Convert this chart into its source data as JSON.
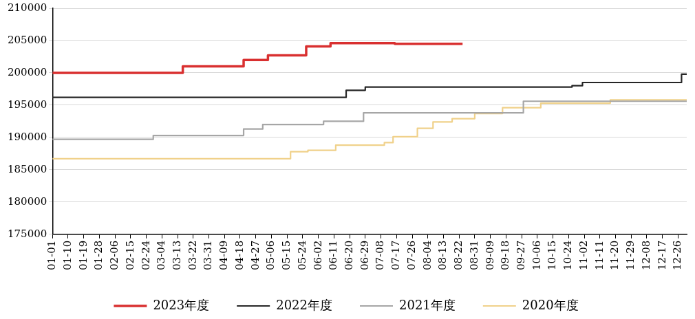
{
  "chart_data": {
    "type": "step",
    "legend": "bottom",
    "grid": "y",
    "marker": "none",
    "xlim": [
      "2020-01-01",
      "2020-12-31"
    ],
    "ylim": [
      175000,
      210000
    ],
    "yticks": [
      175000,
      180000,
      185000,
      190000,
      195000,
      200000,
      205000,
      210000
    ],
    "xticks": [
      {
        "value": "2020-01-01",
        "label": "01-01"
      },
      {
        "value": "2020-01-10",
        "label": "01-10"
      },
      {
        "value": "2020-01-19",
        "label": "01-19"
      },
      {
        "value": "2020-01-28",
        "label": "01-28"
      },
      {
        "value": "2020-02-06",
        "label": "02-06"
      },
      {
        "value": "2020-02-15",
        "label": "02-15"
      },
      {
        "value": "2020-02-24",
        "label": "02-24"
      },
      {
        "value": "2020-03-04",
        "label": "03-04"
      },
      {
        "value": "2020-03-13",
        "label": "03-13"
      },
      {
        "value": "2020-03-22",
        "label": "03-22"
      },
      {
        "value": "2020-03-31",
        "label": "03-31"
      },
      {
        "value": "2020-04-09",
        "label": "04-09"
      },
      {
        "value": "2020-04-18",
        "label": "04-18"
      },
      {
        "value": "2020-04-27",
        "label": "04-27"
      },
      {
        "value": "2020-05-06",
        "label": "05-06"
      },
      {
        "value": "2020-05-15",
        "label": "05-15"
      },
      {
        "value": "2020-05-24",
        "label": "05-24"
      },
      {
        "value": "2020-06-02",
        "label": "06-02"
      },
      {
        "value": "2020-06-11",
        "label": "06-11"
      },
      {
        "value": "2020-06-20",
        "label": "06-20"
      },
      {
        "value": "2020-06-29",
        "label": "06-29"
      },
      {
        "value": "2020-07-08",
        "label": "07-08"
      },
      {
        "value": "2020-07-17",
        "label": "07-17"
      },
      {
        "value": "2020-07-26",
        "label": "07-26"
      },
      {
        "value": "2020-08-04",
        "label": "08-04"
      },
      {
        "value": "2020-08-13",
        "label": "08-13"
      },
      {
        "value": "2020-08-22",
        "label": "08-22"
      },
      {
        "value": "2020-08-31",
        "label": "08-31"
      },
      {
        "value": "2020-09-09",
        "label": "09-09"
      },
      {
        "value": "2020-09-18",
        "label": "09-18"
      },
      {
        "value": "2020-09-27",
        "label": "09-27"
      },
      {
        "value": "2020-10-06",
        "label": "10-06"
      },
      {
        "value": "2020-10-15",
        "label": "10-15"
      },
      {
        "value": "2020-10-24",
        "label": "10-24"
      },
      {
        "value": "2020-11-02",
        "label": "11-02"
      },
      {
        "value": "2020-11-11",
        "label": "11-11"
      },
      {
        "value": "2020-11-20",
        "label": "11-20"
      },
      {
        "value": "2020-11-29",
        "label": "11-29"
      },
      {
        "value": "2020-12-08",
        "label": "12-08"
      },
      {
        "value": "2020-12-17",
        "label": "12-17"
      },
      {
        "value": "2020-12-26",
        "label": "12-26"
      }
    ],
    "series": [
      {
        "name": "2023年度",
        "color": "#d93030",
        "x": [
          "2020-01-01",
          "2020-03-16",
          "2020-04-20",
          "2020-05-04",
          "2020-05-26",
          "2020-06-09",
          "2020-07-16",
          "2020-08-24"
        ],
        "values": [
          200000,
          201000,
          202000,
          202700,
          204100,
          204600,
          204500,
          204500
        ]
      },
      {
        "name": "2022年度",
        "color": "#262626",
        "x": [
          "2020-01-01",
          "2020-06-18",
          "2020-06-29",
          "2020-10-26",
          "2020-11-01",
          "2020-12-28",
          "2020-12-31"
        ],
        "values": [
          196200,
          197300,
          197800,
          198000,
          198500,
          199800,
          199800
        ]
      },
      {
        "name": "2021年度",
        "color": "#a6a6a6",
        "x": [
          "2020-01-01",
          "2020-02-28",
          "2020-04-20",
          "2020-05-01",
          "2020-06-05",
          "2020-06-28",
          "2020-09-28",
          "2020-12-31"
        ],
        "values": [
          189700,
          190300,
          191300,
          192000,
          192500,
          193800,
          195600,
          195600
        ]
      },
      {
        "name": "2020年度",
        "color": "#f0d18a",
        "x": [
          "2020-01-01",
          "2020-05-17",
          "2020-05-27",
          "2020-06-12",
          "2020-07-10",
          "2020-07-15",
          "2020-07-29",
          "2020-08-07",
          "2020-08-18",
          "2020-08-31",
          "2020-09-16",
          "2020-10-08",
          "2020-11-17",
          "2020-12-31"
        ],
        "values": [
          186700,
          187800,
          188000,
          188800,
          189200,
          190100,
          191400,
          192400,
          192900,
          193700,
          194600,
          195300,
          195800,
          195800
        ]
      }
    ]
  }
}
